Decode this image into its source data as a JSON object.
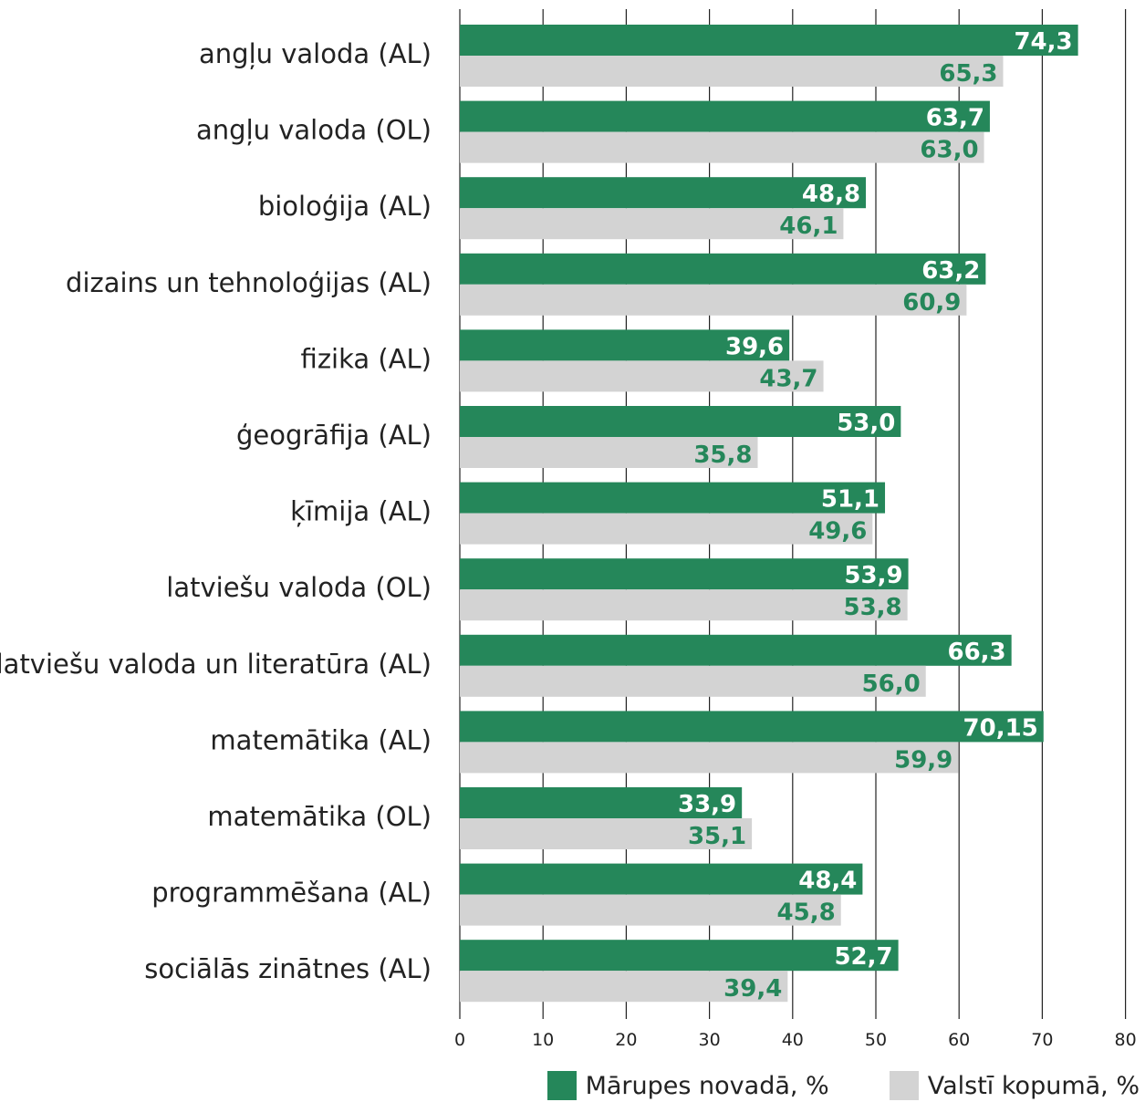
{
  "colors": {
    "primary": "#25875a",
    "secondary": "#d3d3d3",
    "grid": "#222222",
    "text": "#222222"
  },
  "chart_data": {
    "type": "bar",
    "orientation": "horizontal",
    "categories": [
      "angļu valoda (AL)",
      "angļu valoda (OL)",
      "bioloģija (AL)",
      "dizains un tehnoloģijas (AL)",
      "fizika (AL)",
      "ģeogrāfija (AL)",
      "ķīmija (AL)",
      "latviešu valoda (OL)",
      "latviešu valoda un literatūra (AL)",
      "matemātika (AL)",
      "matemātika (OL)",
      "programmēšana (AL)",
      "sociālās zinātnes (AL)"
    ],
    "series": [
      {
        "name": "Mārupes novadā, %",
        "values": [
          74.3,
          63.7,
          48.8,
          63.2,
          39.6,
          53.0,
          51.1,
          53.9,
          66.3,
          70.15,
          33.9,
          48.4,
          52.7
        ],
        "labels": [
          "74,3",
          "63,7",
          "48,8",
          "63,2",
          "39,6",
          "53,0",
          "51,1",
          "53,9",
          "66,3",
          "70,15",
          "33,9",
          "48,4",
          "52,7"
        ]
      },
      {
        "name": "Valstī kopumā, %",
        "values": [
          65.3,
          63.0,
          46.1,
          60.9,
          43.7,
          35.8,
          49.6,
          53.8,
          56.0,
          59.9,
          35.1,
          45.8,
          39.4
        ],
        "labels": [
          "65,3",
          "63,0",
          "46,1",
          "60,9",
          "43,7",
          "35,8",
          "49,6",
          "53,8",
          "56,0",
          "59,9",
          "35,1",
          "45,8",
          "39,4"
        ]
      }
    ],
    "xlim": [
      0,
      80
    ],
    "xticks": [
      "0",
      "10",
      "20",
      "30",
      "40",
      "50",
      "60",
      "70",
      "80"
    ],
    "grid": true,
    "legend_position": "bottom-right"
  }
}
